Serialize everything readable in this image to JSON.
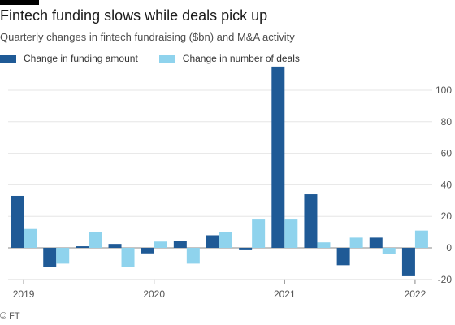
{
  "chart_data": {
    "type": "bar",
    "title": "Fintech funding slows while deals pick up",
    "subtitle": "Quarterly changes in fintech fundraising ($bn) and M&A activity",
    "xlabel": "",
    "ylabel": "",
    "ylim": [
      -20,
      120
    ],
    "yticks": [
      "-20",
      "0",
      "20",
      "40",
      "60",
      "80",
      "100"
    ],
    "x_tick_labels": [
      "2019",
      "2020",
      "2021",
      "2022"
    ],
    "categories": [
      "2019 Q1",
      "2019 Q2",
      "2019 Q3",
      "2019 Q4",
      "2020 Q1",
      "2020 Q2",
      "2020 Q3",
      "2020 Q4",
      "2021 Q1",
      "2021 Q2",
      "2021 Q3",
      "2021 Q4",
      "2022 Q1"
    ],
    "series": [
      {
        "name": "Change in funding amount",
        "color": "#1f5a96",
        "values": [
          33,
          -12,
          1,
          2.5,
          -3.5,
          4.5,
          8,
          -1.5,
          115,
          34,
          -11,
          6.5,
          -18
        ]
      },
      {
        "name": "Change in number of deals",
        "color": "#8fd3ed",
        "values": [
          12,
          -10,
          10,
          -12,
          4,
          -10,
          10,
          18,
          18,
          3.5,
          6.5,
          -4,
          11
        ]
      }
    ],
    "grid": true,
    "legend_position": "top-left"
  },
  "source": "© FT"
}
